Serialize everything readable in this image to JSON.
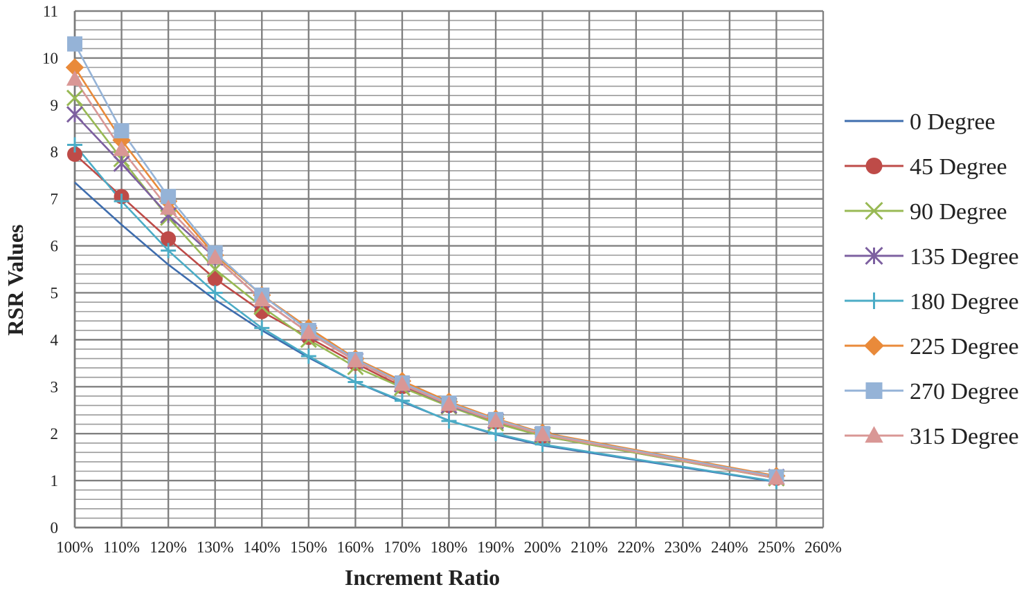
{
  "chart_data": {
    "type": "line",
    "title": "",
    "xlabel": "Increment Ratio",
    "ylabel": "RSR Values",
    "x_ticks": [
      "100%",
      "110%",
      "120%",
      "130%",
      "140%",
      "150%",
      "160%",
      "170%",
      "180%",
      "190%",
      "200%",
      "210%",
      "220%",
      "230%",
      "240%",
      "250%",
      "260%"
    ],
    "y_ticks": [
      "0",
      "1",
      "2",
      "3",
      "4",
      "5",
      "6",
      "7",
      "8",
      "9",
      "10",
      "11"
    ],
    "xlim": [
      100,
      260
    ],
    "ylim": [
      0,
      11
    ],
    "x_unit": "%",
    "grid": true,
    "legend_position": "right",
    "x": [
      100,
      110,
      120,
      130,
      140,
      150,
      160,
      170,
      180,
      190,
      200,
      250
    ],
    "series": [
      {
        "name": "0 Degree",
        "color": "#3E6DAE",
        "marker": "none",
        "values": [
          7.35,
          6.45,
          5.6,
          4.85,
          4.2,
          3.62,
          3.1,
          2.68,
          2.28,
          1.98,
          1.75,
          0.97
        ]
      },
      {
        "name": "45 Degree",
        "color": "#BE4B48",
        "marker": "circle",
        "values": [
          7.95,
          7.05,
          6.15,
          5.3,
          4.6,
          4.05,
          3.5,
          3.0,
          2.6,
          2.25,
          1.95,
          1.05
        ]
      },
      {
        "name": "90 Degree",
        "color": "#98B954",
        "marker": "x",
        "values": [
          9.15,
          7.85,
          6.6,
          5.5,
          4.7,
          4.0,
          3.42,
          2.98,
          2.58,
          2.22,
          1.95,
          1.05
        ]
      },
      {
        "name": "135 Degree",
        "color": "#7D60A0",
        "marker": "asterisk",
        "values": [
          8.8,
          7.75,
          6.65,
          5.75,
          4.85,
          4.15,
          3.55,
          3.05,
          2.6,
          2.27,
          1.98,
          1.08
        ]
      },
      {
        "name": "180 Degree",
        "color": "#4BACC6",
        "marker": "plus",
        "values": [
          8.15,
          6.95,
          5.9,
          5.0,
          4.25,
          3.65,
          3.1,
          2.7,
          2.27,
          2.0,
          1.77,
          0.98
        ]
      },
      {
        "name": "225 Degree",
        "color": "#E98A3A",
        "marker": "diamond",
        "values": [
          9.8,
          8.25,
          6.95,
          5.8,
          4.95,
          4.25,
          3.6,
          3.12,
          2.68,
          2.32,
          2.02,
          1.1
        ]
      },
      {
        "name": "270 Degree",
        "color": "#95B3D7",
        "marker": "square",
        "values": [
          10.3,
          8.45,
          7.05,
          5.85,
          4.95,
          4.2,
          3.58,
          3.08,
          2.65,
          2.3,
          2.0,
          1.08
        ]
      },
      {
        "name": "315 Degree",
        "color": "#D99795",
        "marker": "triangle",
        "values": [
          9.55,
          8.05,
          6.8,
          5.75,
          4.85,
          4.15,
          3.55,
          3.05,
          2.62,
          2.27,
          1.98,
          1.05
        ]
      }
    ]
  }
}
